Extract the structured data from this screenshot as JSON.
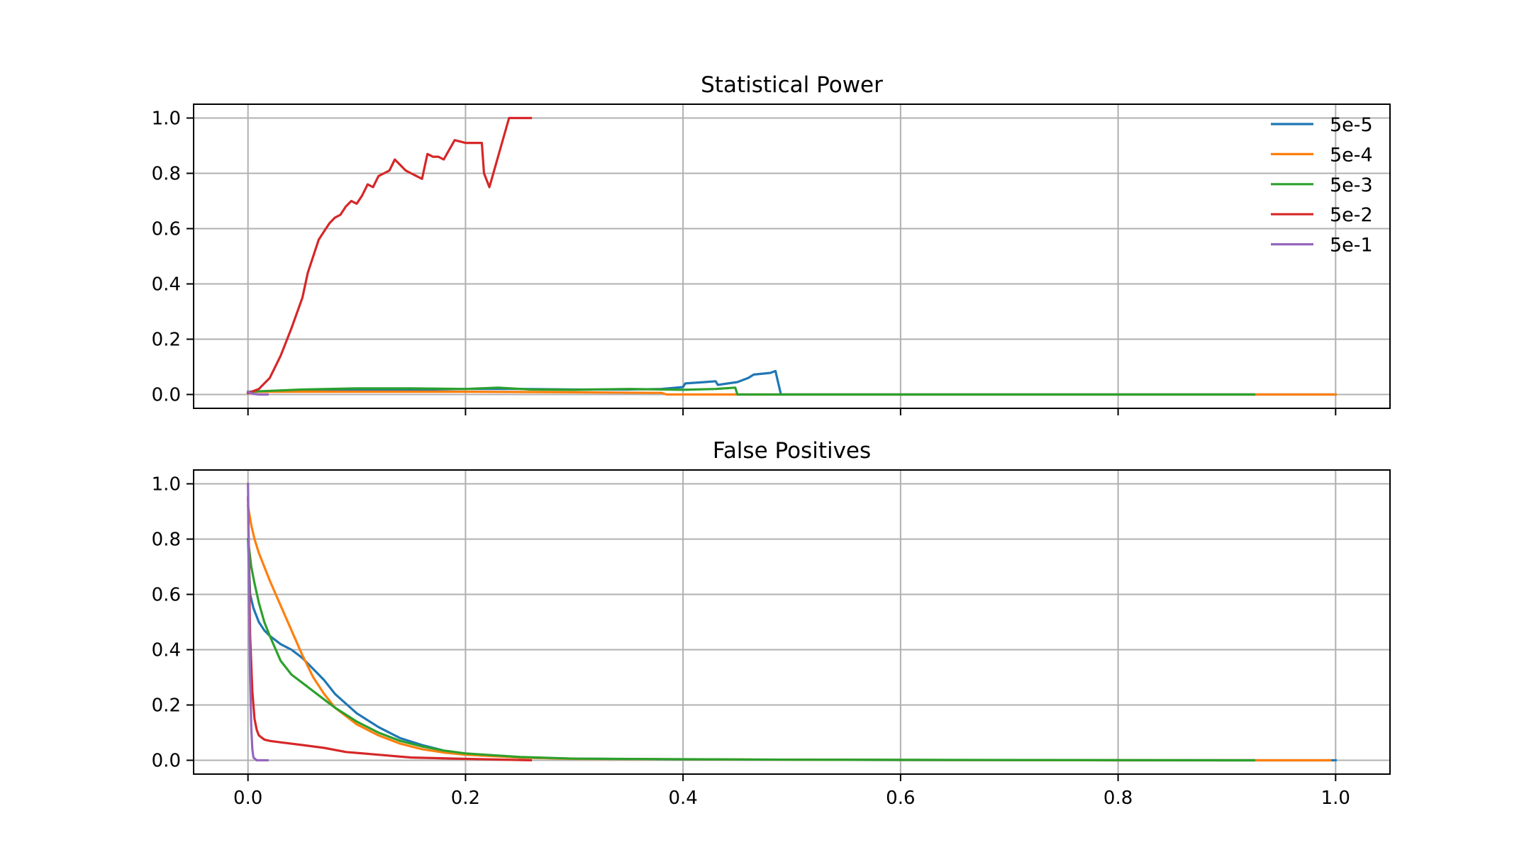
{
  "chart_data": [
    {
      "type": "line",
      "title": "Statistical Power",
      "xlabel": "",
      "ylabel": "",
      "xlim": [
        -0.05,
        1.05
      ],
      "ylim": [
        -0.05,
        1.05
      ],
      "x_ticks": [
        0.0,
        0.2,
        0.4,
        0.6,
        0.8,
        1.0
      ],
      "x_tick_labels": [
        "",
        "",
        "",
        "",
        "",
        ""
      ],
      "y_ticks": [
        0.0,
        0.2,
        0.4,
        0.6,
        0.8,
        1.0
      ],
      "y_tick_labels": [
        "0.0",
        "0.2",
        "0.4",
        "0.6",
        "0.8",
        "1.0"
      ],
      "grid": true,
      "legend": {
        "position": "top-right",
        "frame": false
      },
      "series": [
        {
          "name": "5e-5",
          "color": "#1f77b4",
          "x": [
            0.0,
            0.05,
            0.1,
            0.15,
            0.2,
            0.25,
            0.3,
            0.35,
            0.38,
            0.4,
            0.402,
            0.42,
            0.43,
            0.432,
            0.45,
            0.46,
            0.465,
            0.48,
            0.485,
            0.487,
            0.49,
            1.0
          ],
          "y": [
            0.01,
            0.012,
            0.015,
            0.017,
            0.02,
            0.02,
            0.018,
            0.018,
            0.02,
            0.027,
            0.04,
            0.045,
            0.048,
            0.035,
            0.045,
            0.06,
            0.072,
            0.078,
            0.085,
            0.05,
            0.0,
            0.0
          ]
        },
        {
          "name": "5e-4",
          "color": "#ff7f0e",
          "x": [
            0.0,
            0.05,
            0.1,
            0.2,
            0.3,
            0.38,
            0.385,
            0.45,
            0.455,
            1.0
          ],
          "y": [
            0.01,
            0.01,
            0.01,
            0.01,
            0.008,
            0.006,
            0.0,
            0.0,
            0.0,
            0.0
          ]
        },
        {
          "name": "5e-3",
          "color": "#2ca02c",
          "x": [
            0.0,
            0.05,
            0.1,
            0.15,
            0.2,
            0.23,
            0.26,
            0.3,
            0.35,
            0.4,
            0.43,
            0.448,
            0.45,
            0.925
          ],
          "y": [
            0.01,
            0.018,
            0.022,
            0.022,
            0.02,
            0.025,
            0.018,
            0.017,
            0.02,
            0.017,
            0.02,
            0.025,
            0.0,
            0.0
          ]
        },
        {
          "name": "5e-2",
          "color": "#d62728",
          "x": [
            0.0,
            0.01,
            0.02,
            0.03,
            0.04,
            0.05,
            0.055,
            0.06,
            0.065,
            0.07,
            0.075,
            0.08,
            0.085,
            0.09,
            0.095,
            0.1,
            0.105,
            0.11,
            0.115,
            0.12,
            0.125,
            0.13,
            0.135,
            0.14,
            0.145,
            0.15,
            0.155,
            0.16,
            0.165,
            0.17,
            0.175,
            0.18,
            0.19,
            0.2,
            0.215,
            0.217,
            0.222,
            0.24,
            0.26
          ],
          "y": [
            0.005,
            0.02,
            0.06,
            0.14,
            0.24,
            0.35,
            0.44,
            0.5,
            0.56,
            0.59,
            0.62,
            0.64,
            0.65,
            0.68,
            0.7,
            0.69,
            0.72,
            0.76,
            0.75,
            0.79,
            0.8,
            0.81,
            0.85,
            0.83,
            0.81,
            0.8,
            0.79,
            0.78,
            0.87,
            0.86,
            0.86,
            0.85,
            0.92,
            0.91,
            0.91,
            0.8,
            0.75,
            1.0,
            1.0
          ]
        },
        {
          "name": "5e-1",
          "color": "#9467bd",
          "x": [
            0.0,
            0.005,
            0.01,
            0.015,
            0.018
          ],
          "y": [
            0.01,
            0.002,
            0.0,
            0.0,
            0.0
          ]
        }
      ]
    },
    {
      "type": "line",
      "title": "False Positives",
      "xlabel": "",
      "ylabel": "",
      "xlim": [
        -0.05,
        1.05
      ],
      "ylim": [
        -0.05,
        1.05
      ],
      "x_ticks": [
        0.0,
        0.2,
        0.4,
        0.6,
        0.8,
        1.0
      ],
      "x_tick_labels": [
        "0.0",
        "0.2",
        "0.4",
        "0.6",
        "0.8",
        "1.0"
      ],
      "y_ticks": [
        0.0,
        0.2,
        0.4,
        0.6,
        0.8,
        1.0
      ],
      "y_tick_labels": [
        "0.0",
        "0.2",
        "0.4",
        "0.6",
        "0.8",
        "1.0"
      ],
      "grid": true,
      "series": [
        {
          "name": "5e-5",
          "color": "#1f77b4",
          "x": [
            0.0,
            0.002,
            0.005,
            0.01,
            0.015,
            0.02,
            0.03,
            0.04,
            0.05,
            0.06,
            0.07,
            0.08,
            0.1,
            0.12,
            0.14,
            0.16,
            0.18,
            0.2,
            0.25,
            0.3,
            0.4,
            0.5,
            0.6,
            0.8,
            1.0
          ],
          "y": [
            0.8,
            0.6,
            0.55,
            0.5,
            0.47,
            0.45,
            0.42,
            0.4,
            0.37,
            0.33,
            0.29,
            0.24,
            0.17,
            0.12,
            0.08,
            0.055,
            0.035,
            0.022,
            0.01,
            0.006,
            0.003,
            0.002,
            0.001,
            0.0,
            0.0
          ]
        },
        {
          "name": "5e-4",
          "color": "#ff7f0e",
          "x": [
            0.0,
            0.003,
            0.006,
            0.01,
            0.02,
            0.03,
            0.04,
            0.05,
            0.06,
            0.07,
            0.08,
            0.1,
            0.12,
            0.14,
            0.16,
            0.18,
            0.2,
            0.25,
            0.3,
            0.5,
            0.8,
            0.995
          ],
          "y": [
            0.92,
            0.85,
            0.8,
            0.75,
            0.65,
            0.56,
            0.47,
            0.38,
            0.3,
            0.24,
            0.19,
            0.13,
            0.09,
            0.06,
            0.04,
            0.028,
            0.02,
            0.01,
            0.005,
            0.002,
            0.0,
            0.0
          ]
        },
        {
          "name": "5e-3",
          "color": "#2ca02c",
          "x": [
            0.0,
            0.003,
            0.006,
            0.01,
            0.015,
            0.02,
            0.03,
            0.04,
            0.05,
            0.06,
            0.07,
            0.08,
            0.1,
            0.12,
            0.14,
            0.16,
            0.18,
            0.2,
            0.25,
            0.3,
            0.5,
            0.7,
            0.925
          ],
          "y": [
            0.8,
            0.7,
            0.64,
            0.57,
            0.5,
            0.45,
            0.36,
            0.31,
            0.28,
            0.25,
            0.22,
            0.19,
            0.14,
            0.1,
            0.07,
            0.05,
            0.035,
            0.025,
            0.012,
            0.006,
            0.002,
            0.001,
            0.0
          ]
        },
        {
          "name": "5e-2",
          "color": "#d62728",
          "x": [
            0.0,
            0.002,
            0.004,
            0.006,
            0.008,
            0.01,
            0.015,
            0.02,
            0.03,
            0.05,
            0.07,
            0.09,
            0.12,
            0.15,
            0.2,
            0.26
          ],
          "y": [
            0.95,
            0.45,
            0.25,
            0.15,
            0.11,
            0.09,
            0.075,
            0.07,
            0.065,
            0.055,
            0.045,
            0.03,
            0.02,
            0.01,
            0.005,
            0.0
          ]
        },
        {
          "name": "5e-1",
          "color": "#9467bd",
          "x": [
            0.0,
            0.0005,
            0.001,
            0.002,
            0.003,
            0.004,
            0.005,
            0.008,
            0.018
          ],
          "y": [
            1.0,
            0.85,
            0.6,
            0.3,
            0.12,
            0.04,
            0.01,
            0.0,
            0.0
          ]
        }
      ]
    }
  ]
}
